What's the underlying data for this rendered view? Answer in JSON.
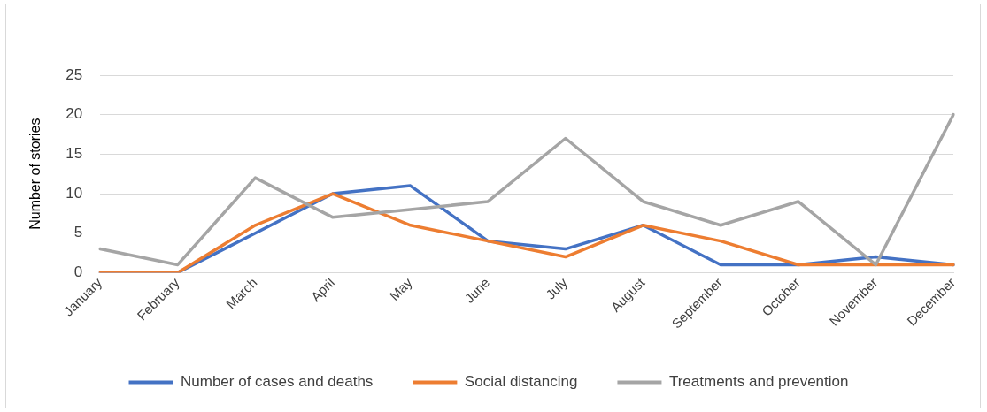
{
  "chart_data": {
    "type": "line",
    "ylabel": "Number of stories",
    "categories": [
      "January",
      "February",
      "March",
      "April",
      "May",
      "June",
      "July",
      "August",
      "September",
      "October",
      "November",
      "December"
    ],
    "series": [
      {
        "name": "Number of cases and deaths",
        "color": "#4472c4",
        "values": [
          0,
          0,
          5,
          10,
          11,
          4,
          3,
          6,
          1,
          1,
          2,
          1
        ]
      },
      {
        "name": "Social distancing",
        "color": "#ed7d31",
        "values": [
          0,
          0,
          6,
          10,
          6,
          4,
          2,
          6,
          4,
          1,
          1,
          1
        ]
      },
      {
        "name": "Treatments and prevention",
        "color": "#a5a5a5",
        "values": [
          3,
          1,
          12,
          7,
          8,
          9,
          17,
          9,
          6,
          9,
          1,
          20
        ]
      }
    ],
    "ylim": [
      0,
      25
    ],
    "yticks": [
      0,
      5,
      10,
      15,
      20,
      25
    ],
    "grid": "y",
    "legend": "bottom",
    "marker": "none",
    "line_style": "solid"
  }
}
